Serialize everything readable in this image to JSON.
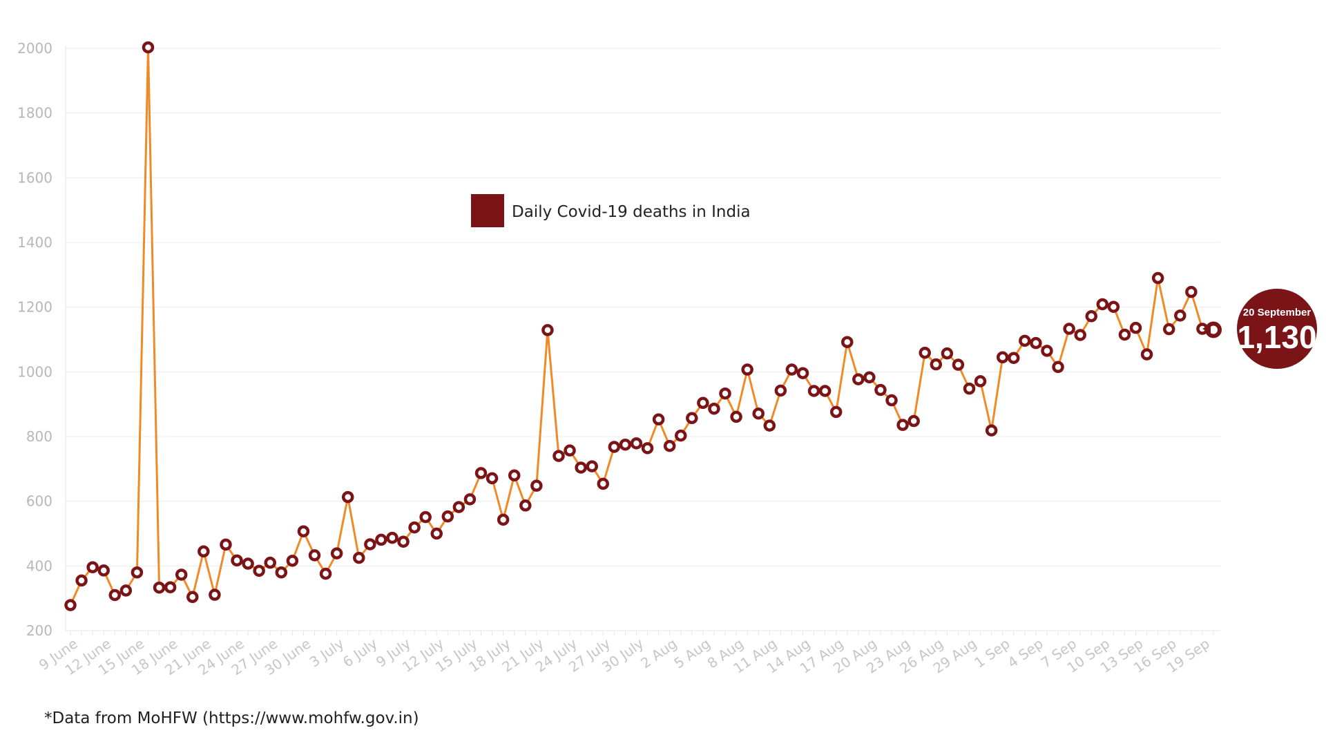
{
  "chart_data": {
    "type": "line",
    "ylim": [
      200,
      2000
    ],
    "y_ticks": [
      200,
      400,
      600,
      800,
      1000,
      1200,
      1400,
      1600,
      1800,
      2000
    ],
    "grid": true,
    "legend_placement": "top-center",
    "x_tick_labels": [
      "9 June",
      "12 June",
      "15 June",
      "18 June",
      "21 June",
      "24 June",
      "27 June",
      "30 June",
      "3 July",
      "6 July",
      "9 July",
      "12 July",
      "15 July",
      "18 July",
      "21 July",
      "24 July",
      "27 July",
      "30 July",
      "2 Aug",
      "5 Aug",
      "8 Aug",
      "11 Aug",
      "14 Aug",
      "17 Aug",
      "20 Aug",
      "23 Aug",
      "26 Aug",
      "29 Aug",
      "1 Sep",
      "4 Sep",
      "7 Sep",
      "10 Sep",
      "13 Sep",
      "16 Sep",
      "19 Sep"
    ],
    "series": [
      {
        "name": "Daily Covid-19 deaths in India",
        "color": "#7a1416",
        "line_color": "#f08a26",
        "values": [
          279,
          355,
          396,
          386,
          310,
          324,
          380,
          2003,
          333,
          334,
          373,
          304,
          445,
          311,
          466,
          417,
          407,
          385,
          410,
          380,
          416,
          507,
          433,
          376,
          439,
          613,
          425,
          467,
          481,
          487,
          475,
          519,
          551,
          500,
          553,
          582,
          606,
          687,
          671,
          543,
          680,
          587,
          648,
          1129,
          740,
          757,
          704,
          708,
          654,
          768,
          775,
          779,
          764,
          853,
          771,
          803,
          857,
          904,
          886,
          933,
          861,
          1007,
          871,
          834,
          942,
          1007,
          996,
          941,
          941,
          876,
          1092,
          977,
          983,
          944,
          912,
          836,
          848,
          1059,
          1023,
          1057,
          1022,
          948,
          971,
          819,
          1045,
          1043,
          1096,
          1089,
          1065,
          1015,
          1133,
          1114,
          1172,
          1209,
          1201,
          1115,
          1136,
          1054,
          1290,
          1132,
          1174,
          1247,
          1133,
          1130
        ]
      }
    ],
    "callout": {
      "date": "20 September",
      "value": "1,130",
      "color": "#7a1416"
    },
    "source_note": "*Data from MoHFW (https://www.mohfw.gov.in)"
  }
}
